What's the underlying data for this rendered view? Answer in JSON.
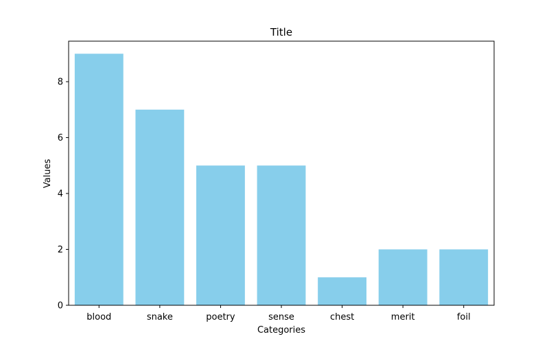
{
  "chart_data": {
    "type": "bar",
    "title": "Title",
    "xlabel": "Categories",
    "ylabel": "Values",
    "categories": [
      "blood",
      "snake",
      "poetry",
      "sense",
      "chest",
      "merit",
      "foil"
    ],
    "values": [
      9,
      7,
      5,
      5,
      1,
      2,
      2
    ],
    "ylim": [
      0,
      9.45
    ],
    "yticks": [
      0,
      2,
      4,
      6,
      8
    ],
    "bar_color": "#87ceeb",
    "grid": false,
    "legend": "none"
  }
}
